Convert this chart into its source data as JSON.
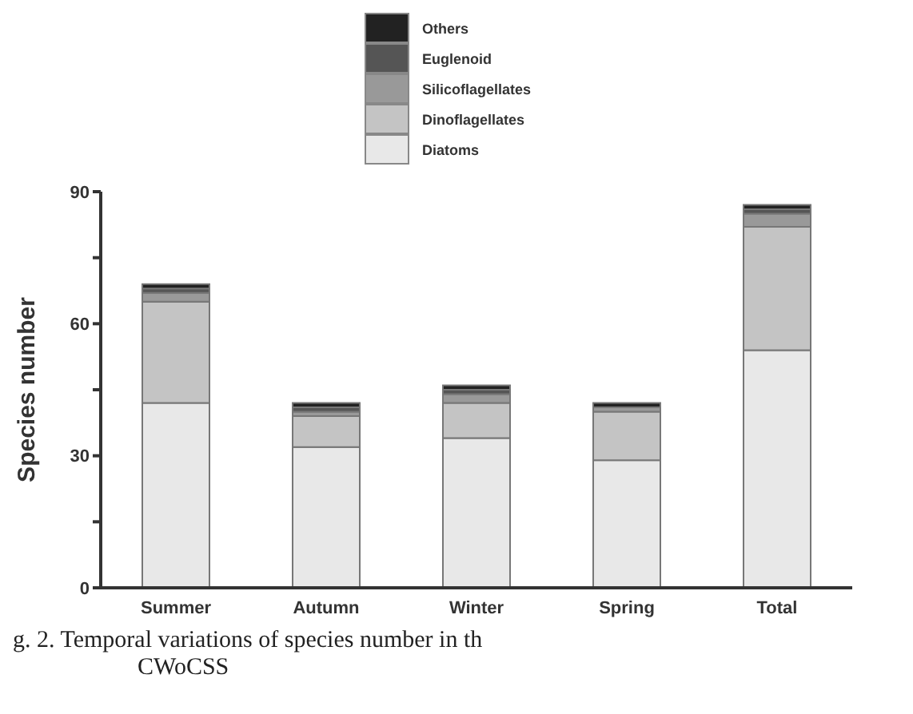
{
  "chart_data": {
    "type": "bar",
    "stacked": true,
    "ylabel": "Species number",
    "categories": [
      "Summer",
      "Autumn",
      "Winter",
      "Spring",
      "Total"
    ],
    "series": [
      {
        "name": "Diatoms",
        "color": "#e8e8e8",
        "values": [
          42,
          32,
          34,
          29,
          54
        ]
      },
      {
        "name": "Dinoflagellates",
        "color": "#c4c4c4",
        "values": [
          23,
          7,
          8,
          11,
          28
        ]
      },
      {
        "name": "Silicoflagellates",
        "color": "#999999",
        "values": [
          2,
          1,
          2,
          1,
          3
        ]
      },
      {
        "name": "Euglenoid",
        "color": "#555555",
        "values": [
          1,
          1,
          1,
          0,
          1
        ]
      },
      {
        "name": "Others",
        "color": "#222222",
        "values": [
          1,
          1,
          1,
          1,
          1
        ]
      }
    ],
    "ylim": [
      0,
      90
    ],
    "yticks": [
      0,
      {
        "value": 15,
        "label": null
      },
      30,
      {
        "value": 45,
        "label": null
      },
      60,
      {
        "value": 75,
        "label": null
      },
      90
    ],
    "legend": "top",
    "grid": false,
    "annotations": [
      "g. 2. Temporal variations of species number in th",
      "CWoCSS"
    ]
  }
}
